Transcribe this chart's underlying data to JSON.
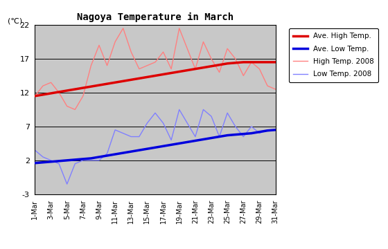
{
  "title": "Nagoya Temperature in March",
  "ylabel": "(℃)",
  "ylim": [
    -3,
    22
  ],
  "yticks": [
    -3,
    2,
    7,
    12,
    17,
    22
  ],
  "background_color": "#c8c8c8",
  "days": [
    1,
    2,
    3,
    4,
    5,
    6,
    7,
    8,
    9,
    10,
    11,
    12,
    13,
    14,
    15,
    16,
    17,
    18,
    19,
    20,
    21,
    22,
    23,
    24,
    25,
    26,
    27,
    28,
    29,
    30,
    31
  ],
  "xlabels": [
    "1-Mar",
    "3-Mar",
    "5-Mar",
    "7-Mar",
    "9-Mar",
    "11-Mar",
    "13-Mar",
    "15-Mar",
    "17-Mar",
    "19-Mar",
    "21-Mar",
    "23-Mar",
    "25-Mar",
    "27-Mar",
    "29-Mar",
    "31-Mar"
  ],
  "xtick_positions": [
    1,
    3,
    5,
    7,
    9,
    11,
    13,
    15,
    17,
    19,
    21,
    23,
    25,
    27,
    29,
    31
  ],
  "ave_high": [
    11.5,
    11.7,
    11.9,
    12.1,
    12.3,
    12.5,
    12.7,
    12.9,
    13.1,
    13.3,
    13.5,
    13.7,
    13.9,
    14.1,
    14.3,
    14.5,
    14.7,
    14.9,
    15.1,
    15.3,
    15.5,
    15.7,
    15.9,
    16.1,
    16.3,
    16.4,
    16.5,
    16.5,
    16.5,
    16.5,
    16.5
  ],
  "ave_low": [
    1.6,
    1.7,
    1.8,
    1.9,
    2.0,
    2.1,
    2.2,
    2.3,
    2.5,
    2.7,
    2.9,
    3.1,
    3.3,
    3.5,
    3.7,
    3.9,
    4.1,
    4.3,
    4.5,
    4.7,
    4.9,
    5.1,
    5.3,
    5.5,
    5.7,
    5.8,
    5.9,
    6.0,
    6.2,
    6.4,
    6.5
  ],
  "high_2008": [
    11.5,
    13.0,
    13.5,
    12.0,
    10.0,
    9.5,
    11.5,
    16.0,
    19.0,
    16.0,
    19.5,
    21.5,
    18.0,
    15.5,
    16.0,
    16.5,
    18.0,
    15.5,
    21.5,
    18.5,
    15.5,
    19.5,
    17.0,
    15.0,
    18.5,
    17.0,
    14.5,
    16.5,
    15.5,
    13.0,
    12.5
  ],
  "low_2008": [
    3.5,
    2.5,
    2.0,
    1.5,
    -1.5,
    1.5,
    2.0,
    2.0,
    2.0,
    3.0,
    6.5,
    6.0,
    5.5,
    5.5,
    7.5,
    9.0,
    7.5,
    5.0,
    9.5,
    7.5,
    5.5,
    9.5,
    8.5,
    5.5,
    9.0,
    7.0,
    5.5,
    7.0,
    6.0,
    6.5,
    6.5
  ],
  "ave_high_color": "#dd0000",
  "ave_low_color": "#0000dd",
  "high_2008_color": "#ff8080",
  "low_2008_color": "#8080ff",
  "legend_labels": [
    "Ave. High Temp.",
    "Ave. Low Temp.",
    "High Temp. 2008",
    "Low Temp. 2008"
  ]
}
